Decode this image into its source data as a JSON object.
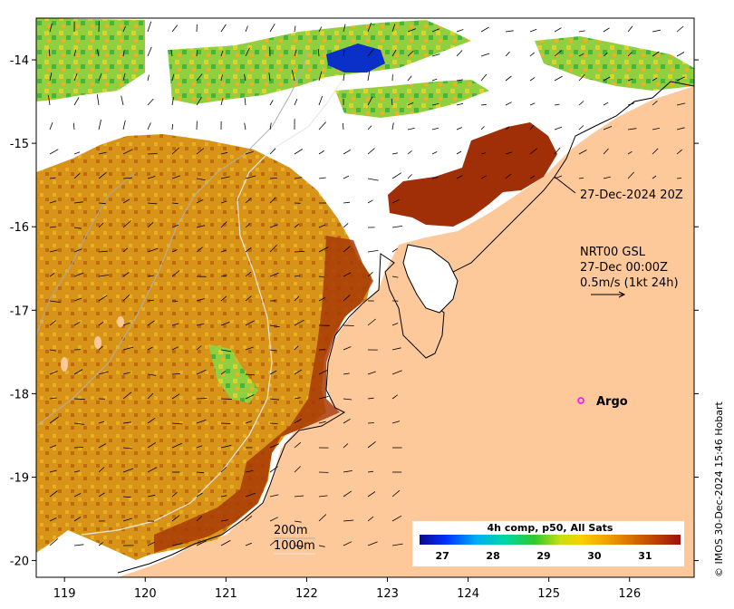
{
  "axes": {
    "x_ticks": [
      "119",
      "120",
      "121",
      "122",
      "123",
      "124",
      "125",
      "126"
    ],
    "y_ticks": [
      "-14",
      "-15",
      "-16",
      "-17",
      "-18",
      "-19",
      "-20"
    ],
    "x_range": [
      118.65,
      126.8
    ],
    "y_range": [
      -20.2,
      -13.5
    ]
  },
  "annotations": {
    "sst_time": "27-Dec-2024 20Z",
    "current_product": "NRT00 GSL",
    "current_time": "27-Dec 00:00Z",
    "current_scale": "0.5m/s (1kt 24h)",
    "argo_label": "Argo",
    "contour_200": "200m",
    "contour_1000": "1000m"
  },
  "colorbar": {
    "title": "4h comp, p50, All Sats",
    "ticks": [
      "27",
      "28",
      "29",
      "30",
      "31"
    ],
    "range": [
      26.55,
      31.7
    ]
  },
  "credit": "© IMOS 30-Dec-2024 15:46 Hobart",
  "argo_float": {
    "lon": 125.3,
    "lat": -18.0
  },
  "colors": {
    "land": "#fec99a",
    "cloud": "#ffffff",
    "sst_warm": "#c8700a",
    "sst_hot": "#a83000",
    "sst_cool": "#7ac840",
    "argo_marker": "#ff00ff"
  }
}
